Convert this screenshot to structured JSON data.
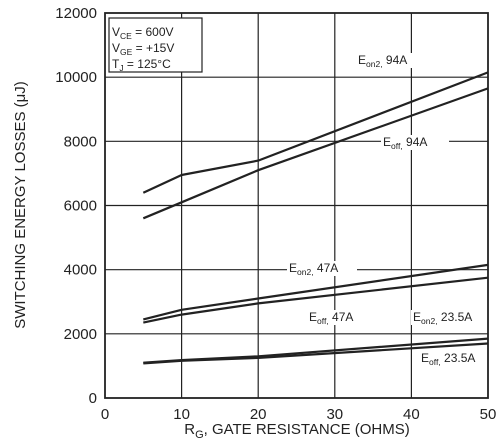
{
  "chart_data": {
    "type": "line",
    "xlabel": {
      "main": "R",
      "sub": "G",
      "rest": ", GATE RESISTANCE (OHMS)"
    },
    "ylabel": "SWITCHING ENERGY LOSSES (μJ)",
    "xlim": [
      0,
      50
    ],
    "ylim": [
      0,
      12000
    ],
    "xticks": [
      0,
      10,
      20,
      30,
      40,
      50
    ],
    "yticks": [
      0,
      2000,
      4000,
      6000,
      8000,
      10000,
      12000
    ],
    "grid": true,
    "conditions": [
      {
        "main": "V",
        "sub": "CE",
        "rest": " =  600V"
      },
      {
        "main": "V",
        "sub": "GE",
        "rest": " =  +15V"
      },
      {
        "main": "T",
        "sub": "J",
        "rest": " = 125°C"
      }
    ],
    "series": [
      {
        "name": "Eon2, 94A",
        "label": {
          "main": "E",
          "sub": "on2,",
          "rest": " 94A"
        },
        "x": [
          5,
          10,
          20,
          50
        ],
        "y": [
          6400,
          6950,
          7400,
          10150
        ]
      },
      {
        "name": "Eoff, 94A",
        "label": {
          "main": "E",
          "sub": "off,",
          "rest": " 94A"
        },
        "x": [
          5,
          10,
          20,
          50
        ],
        "y": [
          5600,
          6100,
          7100,
          9650
        ]
      },
      {
        "name": "Eon2, 47A",
        "label": {
          "main": "E",
          "sub": "on2,",
          "rest": " 47A"
        },
        "x": [
          5,
          10,
          20,
          50
        ],
        "y": [
          2450,
          2750,
          3100,
          4150
        ]
      },
      {
        "name": "Eoff, 47A",
        "label": {
          "main": "E",
          "sub": "off,",
          "rest": " 47A"
        },
        "x": [
          5,
          10,
          20,
          50
        ],
        "y": [
          2350,
          2600,
          2950,
          3750
        ]
      },
      {
        "name": "Eon2, 23.5A",
        "label": {
          "main": "E",
          "sub": "on2,",
          "rest": " 23.5A"
        },
        "x": [
          5,
          10,
          20,
          50
        ],
        "y": [
          1100,
          1180,
          1300,
          1850
        ]
      },
      {
        "name": "Eoff, 23.5A",
        "label": {
          "main": "E",
          "sub": "off,",
          "rest": " 23.5A"
        },
        "x": [
          5,
          10,
          20,
          50
        ],
        "y": [
          1080,
          1160,
          1250,
          1700
        ]
      }
    ]
  }
}
